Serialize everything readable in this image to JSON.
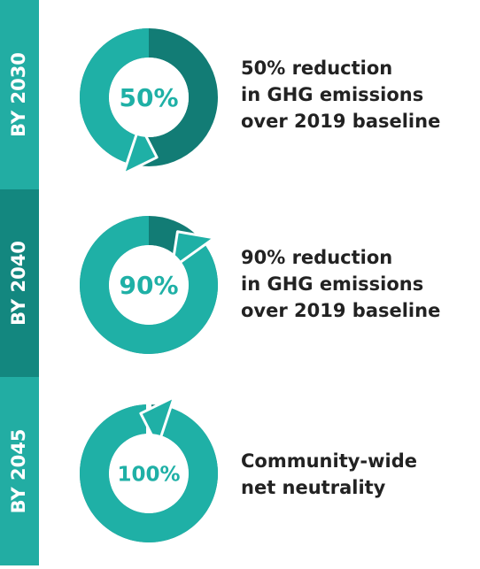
{
  "items": [
    {
      "period": "BY 2030",
      "value": 50,
      "label": "50%",
      "lines": [
        "50% reduction",
        "in GHG emissions",
        "over 2019 baseline"
      ]
    },
    {
      "period": "BY 2040",
      "value": 90,
      "label": "90%",
      "lines": [
        "90% reduction",
        "in GHG emissions",
        "over 2019 baseline"
      ]
    },
    {
      "period": "BY 2045",
      "value": 100,
      "label": "100%",
      "lines": [
        "Community-wide",
        "net neutrality"
      ]
    }
  ]
}
